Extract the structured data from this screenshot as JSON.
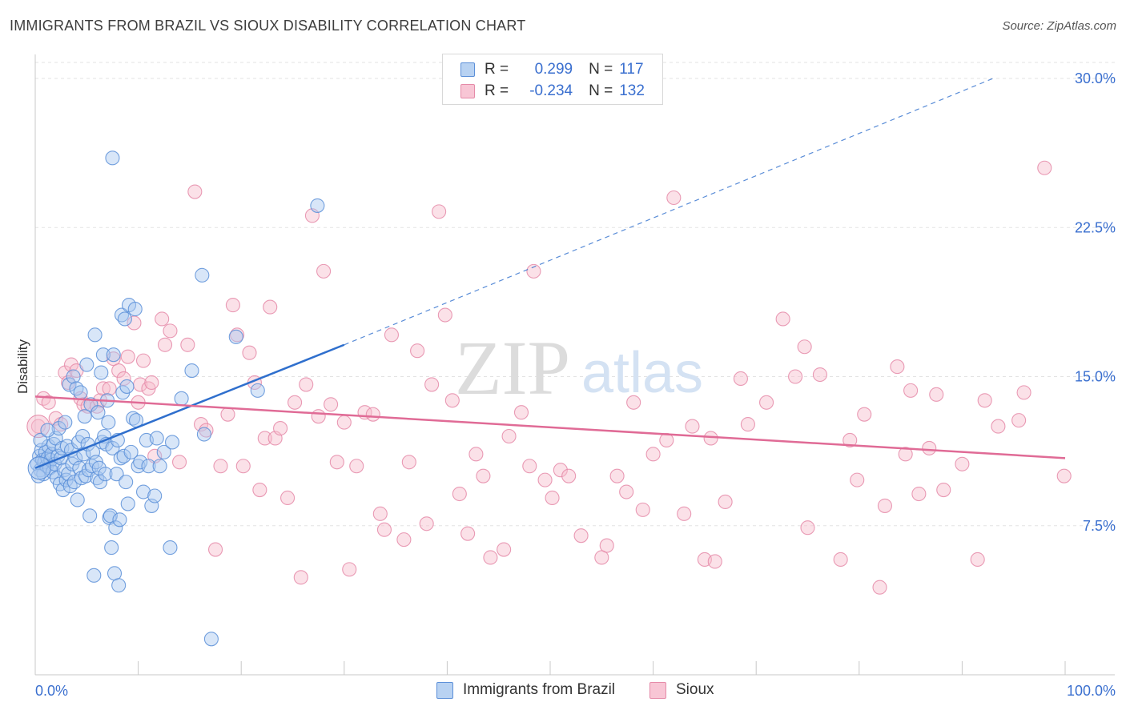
{
  "title": "IMMIGRANTS FROM BRAZIL VS SIOUX DISABILITY CORRELATION CHART",
  "source": "Source: ZipAtlas.com",
  "watermark": {
    "zip": "ZIP",
    "atlas": "atlas"
  },
  "legend": {
    "series1": {
      "r_label": "R =",
      "r_value": "0.299",
      "n_label": "N =",
      "n_value": "117"
    },
    "series2": {
      "r_label": "R =",
      "r_value": "-0.234",
      "n_label": "N =",
      "n_value": "132"
    }
  },
  "colors": {
    "blue_fill": "#a9c8f0",
    "blue_stroke": "#5b8fd8",
    "blue_line": "#2f6fcd",
    "pink_fill": "#f6bccd",
    "pink_stroke": "#e58aa8",
    "pink_line": "#e06b96",
    "axis_label": "#3a6fcf",
    "grid": "#e3e3e3"
  },
  "chart_data": {
    "type": "scatter",
    "xlabel": "",
    "ylabel": "Disability",
    "xlim": [
      0,
      100
    ],
    "ylim": [
      0,
      30
    ],
    "x_tick_labels": [
      "0.0%",
      "100.0%"
    ],
    "y_ticks": [
      7.5,
      15.0,
      22.5,
      30.0
    ],
    "y_tick_labels": [
      "7.5%",
      "15.0%",
      "22.5%",
      "30.0%"
    ],
    "grid": true,
    "legend_position": "top-center",
    "series": [
      {
        "name": "Immigrants from Brazil",
        "color": "blue",
        "trend": {
          "x": [
            0,
            30
          ],
          "y": [
            10.4,
            16.6
          ],
          "dashed_extension": {
            "x": [
              30,
              93
            ],
            "y": [
              16.6,
              30.0
            ]
          }
        },
        "points": [
          [
            0.2,
            10.6
          ],
          [
            0.4,
            11.0
          ],
          [
            0.5,
            10.3
          ],
          [
            0.6,
            11.3
          ],
          [
            0.7,
            10.8
          ],
          [
            0.8,
            10.1
          ],
          [
            0.9,
            10.7
          ],
          [
            1.0,
            11.2
          ],
          [
            1.1,
            10.5
          ],
          [
            1.2,
            10.9
          ],
          [
            1.3,
            11.5
          ],
          [
            1.4,
            10.4
          ],
          [
            1.5,
            10.8
          ],
          [
            1.6,
            11.1
          ],
          [
            1.7,
            10.2
          ],
          [
            1.8,
            11.6
          ],
          [
            1.9,
            10.6
          ],
          [
            2.0,
            11.9
          ],
          [
            2.1,
            9.9
          ],
          [
            2.2,
            11.0
          ],
          [
            2.3,
            12.4
          ],
          [
            2.4,
            9.6
          ],
          [
            2.5,
            10.9
          ],
          [
            2.6,
            11.4
          ],
          [
            2.7,
            9.3
          ],
          [
            2.8,
            10.3
          ],
          [
            2.9,
            12.7
          ],
          [
            3.0,
            9.8
          ],
          [
            3.1,
            11.5
          ],
          [
            3.2,
            10.1
          ],
          [
            3.3,
            14.6
          ],
          [
            3.4,
            9.5
          ],
          [
            3.5,
            11.3
          ],
          [
            3.6,
            10.6
          ],
          [
            3.7,
            15.0
          ],
          [
            3.8,
            9.7
          ],
          [
            3.9,
            10.9
          ],
          [
            4.0,
            14.4
          ],
          [
            4.1,
            8.8
          ],
          [
            4.2,
            11.7
          ],
          [
            4.3,
            10.4
          ],
          [
            4.4,
            14.2
          ],
          [
            4.5,
            9.9
          ],
          [
            4.6,
            12.0
          ],
          [
            4.7,
            11.1
          ],
          [
            4.8,
            13.0
          ],
          [
            4.9,
            10.0
          ],
          [
            5.0,
            15.6
          ],
          [
            5.1,
            11.6
          ],
          [
            5.2,
            10.3
          ],
          [
            5.3,
            8.0
          ],
          [
            5.4,
            13.6
          ],
          [
            5.5,
            10.5
          ],
          [
            5.6,
            11.2
          ],
          [
            5.7,
            5.0
          ],
          [
            5.8,
            17.1
          ],
          [
            5.9,
            10.7
          ],
          [
            6.0,
            9.9
          ],
          [
            6.1,
            13.2
          ],
          [
            6.2,
            10.4
          ],
          [
            6.3,
            9.7
          ],
          [
            6.4,
            15.2
          ],
          [
            6.5,
            11.7
          ],
          [
            6.6,
            16.1
          ],
          [
            6.7,
            12.0
          ],
          [
            6.8,
            10.1
          ],
          [
            6.9,
            11.6
          ],
          [
            7.0,
            13.8
          ],
          [
            7.1,
            12.7
          ],
          [
            7.2,
            7.9
          ],
          [
            7.3,
            8.0
          ],
          [
            7.4,
            6.4
          ],
          [
            7.5,
            11.4
          ],
          [
            7.6,
            16.1
          ],
          [
            7.7,
            5.1
          ],
          [
            7.8,
            7.4
          ],
          [
            7.9,
            10.1
          ],
          [
            8.0,
            11.8
          ],
          [
            8.1,
            4.5
          ],
          [
            8.2,
            7.8
          ],
          [
            8.3,
            10.9
          ],
          [
            8.4,
            18.1
          ],
          [
            8.5,
            14.2
          ],
          [
            8.6,
            11.0
          ],
          [
            8.7,
            17.9
          ],
          [
            8.8,
            9.7
          ],
          [
            8.9,
            14.5
          ],
          [
            9.0,
            8.6
          ],
          [
            9.1,
            18.6
          ],
          [
            9.3,
            11.2
          ],
          [
            9.5,
            12.9
          ],
          [
            9.7,
            18.4
          ],
          [
            9.8,
            12.8
          ],
          [
            10.0,
            10.5
          ],
          [
            10.2,
            10.7
          ],
          [
            10.5,
            9.2
          ],
          [
            10.8,
            11.8
          ],
          [
            11.0,
            10.5
          ],
          [
            11.3,
            8.5
          ],
          [
            11.6,
            9.0
          ],
          [
            11.8,
            11.9
          ],
          [
            12.1,
            10.5
          ],
          [
            12.5,
            11.2
          ],
          [
            13.1,
            6.4
          ],
          [
            13.3,
            11.7
          ],
          [
            14.2,
            13.9
          ],
          [
            15.2,
            15.3
          ],
          [
            16.4,
            12.1
          ],
          [
            16.2,
            20.1
          ],
          [
            17.1,
            1.8
          ],
          [
            19.5,
            17.0
          ],
          [
            21.6,
            14.3
          ],
          [
            7.5,
            26.0
          ],
          [
            27.4,
            23.6
          ],
          [
            0.3,
            10.0
          ],
          [
            0.5,
            11.8
          ],
          [
            1.2,
            12.3
          ]
        ]
      },
      {
        "name": "Sioux",
        "color": "pink",
        "trend": {
          "x": [
            0,
            100
          ],
          "y": [
            14.0,
            10.9
          ]
        },
        "points": [
          [
            0.3,
            12.5
          ],
          [
            0.8,
            13.9
          ],
          [
            1.3,
            13.7
          ],
          [
            2.0,
            12.9
          ],
          [
            2.5,
            12.6
          ],
          [
            2.9,
            15.2
          ],
          [
            3.2,
            14.7
          ],
          [
            3.5,
            15.6
          ],
          [
            4.0,
            15.3
          ],
          [
            4.4,
            13.9
          ],
          [
            4.7,
            13.6
          ],
          [
            5.1,
            13.5
          ],
          [
            6.0,
            13.5
          ],
          [
            6.3,
            13.8
          ],
          [
            6.6,
            14.4
          ],
          [
            7.2,
            14.4
          ],
          [
            7.6,
            15.9
          ],
          [
            8.1,
            15.3
          ],
          [
            8.6,
            14.9
          ],
          [
            9.0,
            16.0
          ],
          [
            9.6,
            17.7
          ],
          [
            10.0,
            13.7
          ],
          [
            10.2,
            14.6
          ],
          [
            10.5,
            15.8
          ],
          [
            11.0,
            14.4
          ],
          [
            11.3,
            14.7
          ],
          [
            11.6,
            11.0
          ],
          [
            12.3,
            17.9
          ],
          [
            12.6,
            16.6
          ],
          [
            13.1,
            17.3
          ],
          [
            14.0,
            10.7
          ],
          [
            14.8,
            16.6
          ],
          [
            15.5,
            24.3
          ],
          [
            16.1,
            12.6
          ],
          [
            16.6,
            12.3
          ],
          [
            17.5,
            6.3
          ],
          [
            18.0,
            10.5
          ],
          [
            18.7,
            13.1
          ],
          [
            19.2,
            18.6
          ],
          [
            19.6,
            17.1
          ],
          [
            20.2,
            10.5
          ],
          [
            20.8,
            16.2
          ],
          [
            21.3,
            14.7
          ],
          [
            21.8,
            9.3
          ],
          [
            22.3,
            11.9
          ],
          [
            22.8,
            18.5
          ],
          [
            23.3,
            11.9
          ],
          [
            23.8,
            12.4
          ],
          [
            24.5,
            8.9
          ],
          [
            25.2,
            13.7
          ],
          [
            25.8,
            4.9
          ],
          [
            26.3,
            14.6
          ],
          [
            26.9,
            23.1
          ],
          [
            27.5,
            13.0
          ],
          [
            28.0,
            20.3
          ],
          [
            28.7,
            13.6
          ],
          [
            29.3,
            10.7
          ],
          [
            30.0,
            12.7
          ],
          [
            30.5,
            5.3
          ],
          [
            31.2,
            10.5
          ],
          [
            32.0,
            13.2
          ],
          [
            32.8,
            13.1
          ],
          [
            33.5,
            8.1
          ],
          [
            33.9,
            7.3
          ],
          [
            34.6,
            17.1
          ],
          [
            35.8,
            6.8
          ],
          [
            36.3,
            10.7
          ],
          [
            37.1,
            16.3
          ],
          [
            38.0,
            7.6
          ],
          [
            38.5,
            14.6
          ],
          [
            39.2,
            23.3
          ],
          [
            39.8,
            18.1
          ],
          [
            40.5,
            13.8
          ],
          [
            41.2,
            9.1
          ],
          [
            42.0,
            7.1
          ],
          [
            42.8,
            11.1
          ],
          [
            43.5,
            10.0
          ],
          [
            44.2,
            5.9
          ],
          [
            45.5,
            6.3
          ],
          [
            46.0,
            12.0
          ],
          [
            47.2,
            13.2
          ],
          [
            48.0,
            10.5
          ],
          [
            48.4,
            20.3
          ],
          [
            49.5,
            9.8
          ],
          [
            50.2,
            8.9
          ],
          [
            51.0,
            10.3
          ],
          [
            51.8,
            10.0
          ],
          [
            53.0,
            7.0
          ],
          [
            55.0,
            5.9
          ],
          [
            55.5,
            6.5
          ],
          [
            56.5,
            10.0
          ],
          [
            57.4,
            9.2
          ],
          [
            58.1,
            13.7
          ],
          [
            59.0,
            8.3
          ],
          [
            60.0,
            11.1
          ],
          [
            61.3,
            11.8
          ],
          [
            62.0,
            24.0
          ],
          [
            63.0,
            8.1
          ],
          [
            63.8,
            12.5
          ],
          [
            65.0,
            5.8
          ],
          [
            65.6,
            11.9
          ],
          [
            66.0,
            5.7
          ],
          [
            67.0,
            8.7
          ],
          [
            68.5,
            14.9
          ],
          [
            69.2,
            12.6
          ],
          [
            71.0,
            13.7
          ],
          [
            72.6,
            17.9
          ],
          [
            73.8,
            15.0
          ],
          [
            74.7,
            16.5
          ],
          [
            75.0,
            7.4
          ],
          [
            76.2,
            15.1
          ],
          [
            78.2,
            5.8
          ],
          [
            79.1,
            11.8
          ],
          [
            79.8,
            9.8
          ],
          [
            80.5,
            13.1
          ],
          [
            82.0,
            4.4
          ],
          [
            82.5,
            8.5
          ],
          [
            83.7,
            15.5
          ],
          [
            84.5,
            11.1
          ],
          [
            85.0,
            14.3
          ],
          [
            85.8,
            9.1
          ],
          [
            86.8,
            11.4
          ],
          [
            87.5,
            14.1
          ],
          [
            88.2,
            9.3
          ],
          [
            90.0,
            10.6
          ],
          [
            91.5,
            5.8
          ],
          [
            92.2,
            13.8
          ],
          [
            93.5,
            12.5
          ],
          [
            95.5,
            12.8
          ],
          [
            96.0,
            14.2
          ],
          [
            98.0,
            25.5
          ],
          [
            99.9,
            10.0
          ]
        ]
      }
    ]
  },
  "bottom_legend": {
    "series1": "Immigrants from Brazil",
    "series2": "Sioux"
  }
}
